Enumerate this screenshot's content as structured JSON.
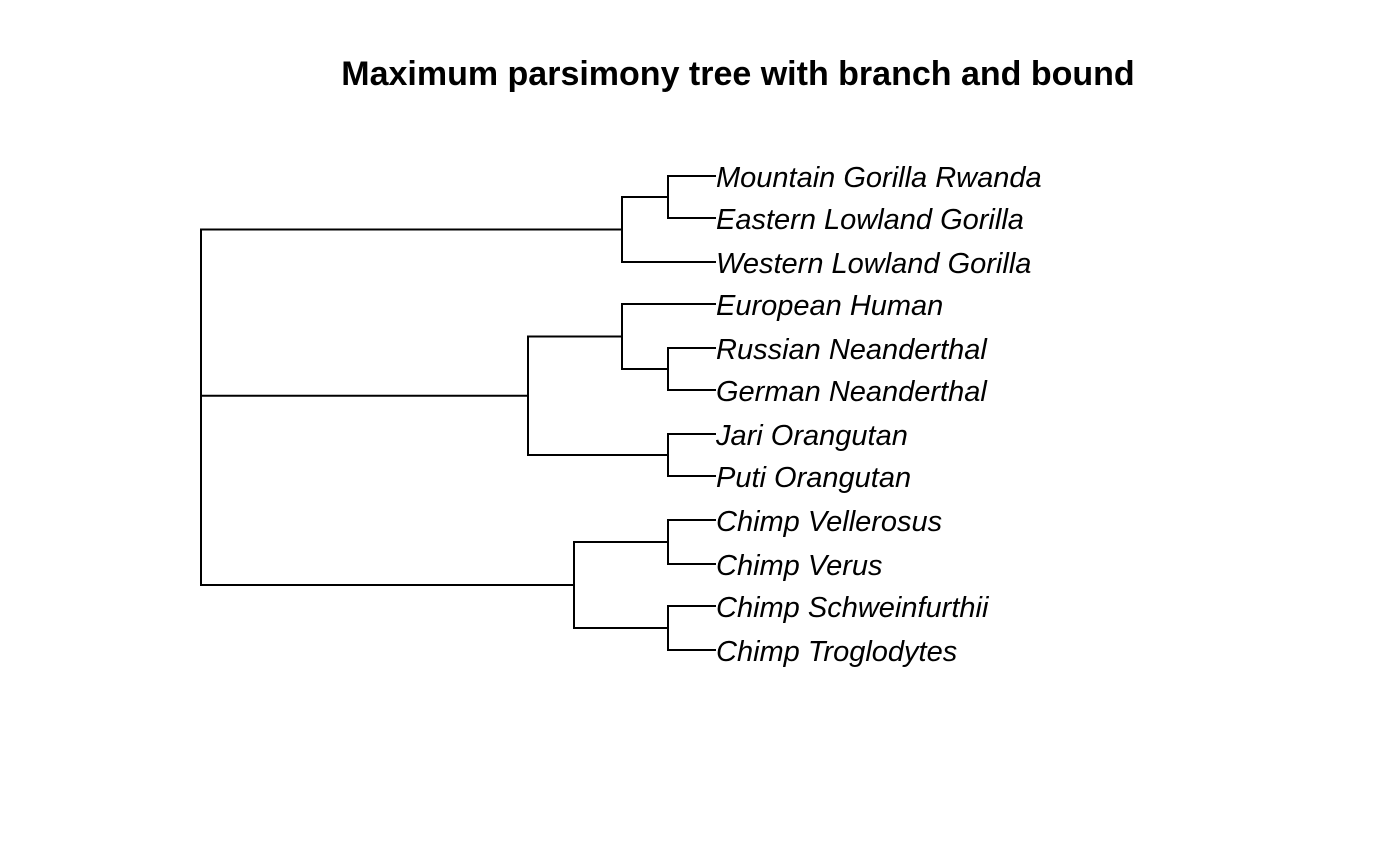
{
  "title": "Maximum parsimony tree with branch and bound",
  "tree": {
    "id": "root",
    "children": [
      {
        "id": "gorilla-clade",
        "children": [
          {
            "id": "gorilla-pair",
            "children": [
              {
                "id": "mountain-gorilla-rwanda",
                "label": "Mountain Gorilla Rwanda"
              },
              {
                "id": "eastern-lowland-gorilla",
                "label": "Eastern Lowland Gorilla"
              }
            ]
          },
          {
            "id": "western-lowland-gorilla",
            "label": "Western Lowland Gorilla"
          }
        ]
      },
      {
        "id": "human-orangutan-clade",
        "children": [
          {
            "id": "human-neanderthal-clade",
            "children": [
              {
                "id": "european-human",
                "label": "European Human"
              },
              {
                "id": "neanderthal-pair",
                "children": [
                  {
                    "id": "russian-neanderthal",
                    "label": "Russian Neanderthal"
                  },
                  {
                    "id": "german-neanderthal",
                    "label": "German Neanderthal"
                  }
                ]
              }
            ]
          },
          {
            "id": "orangutan-pair",
            "children": [
              {
                "id": "jari-orangutan",
                "label": "Jari Orangutan"
              },
              {
                "id": "puti-orangutan",
                "label": "Puti Orangutan"
              }
            ]
          }
        ]
      },
      {
        "id": "chimp-clade",
        "children": [
          {
            "id": "chimp-pair-a",
            "children": [
              {
                "id": "chimp-vellerosus",
                "label": "Chimp Vellerosus"
              },
              {
                "id": "chimp-verus",
                "label": "Chimp Verus"
              }
            ]
          },
          {
            "id": "chimp-pair-b",
            "children": [
              {
                "id": "chimp-schweinfurthii",
                "label": "Chimp Schweinfurthii"
              },
              {
                "id": "chimp-troglodytes",
                "label": "Chimp Troglodytes"
              }
            ]
          }
        ]
      }
    ]
  }
}
